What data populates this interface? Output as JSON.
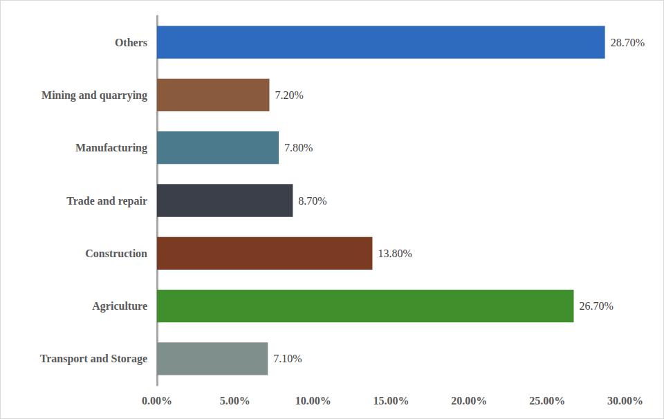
{
  "chart_data": {
    "type": "bar",
    "orientation": "horizontal",
    "categories": [
      "Transport and Storage",
      "Agriculture",
      "Construction",
      "Trade and repair",
      "Manufacturing",
      "Mining and quarrying",
      "Others"
    ],
    "values": [
      7.1,
      26.7,
      13.8,
      8.7,
      7.8,
      7.2,
      28.7
    ],
    "value_labels": [
      "7.10%",
      "26.70%",
      "13.80%",
      "8.70%",
      "7.80%",
      "7.20%",
      "28.70%"
    ],
    "colors": [
      "#7f8f8c",
      "#3f8f2c",
      "#7a3b22",
      "#3a3f4a",
      "#4a7a8c",
      "#8a5a3c",
      "#2e6bbf"
    ],
    "xlim": [
      0,
      30
    ],
    "xticks": [
      {
        "value": 0,
        "label": "0.00%"
      },
      {
        "value": 5,
        "label": "5.00%"
      },
      {
        "value": 10,
        "label": "10.00%"
      },
      {
        "value": 15,
        "label": "15.00%"
      },
      {
        "value": 20,
        "label": "20.00%"
      },
      {
        "value": 25,
        "label": "25.00%"
      },
      {
        "value": 30,
        "label": "30.00%"
      }
    ],
    "grid": false,
    "data_labels": true
  }
}
